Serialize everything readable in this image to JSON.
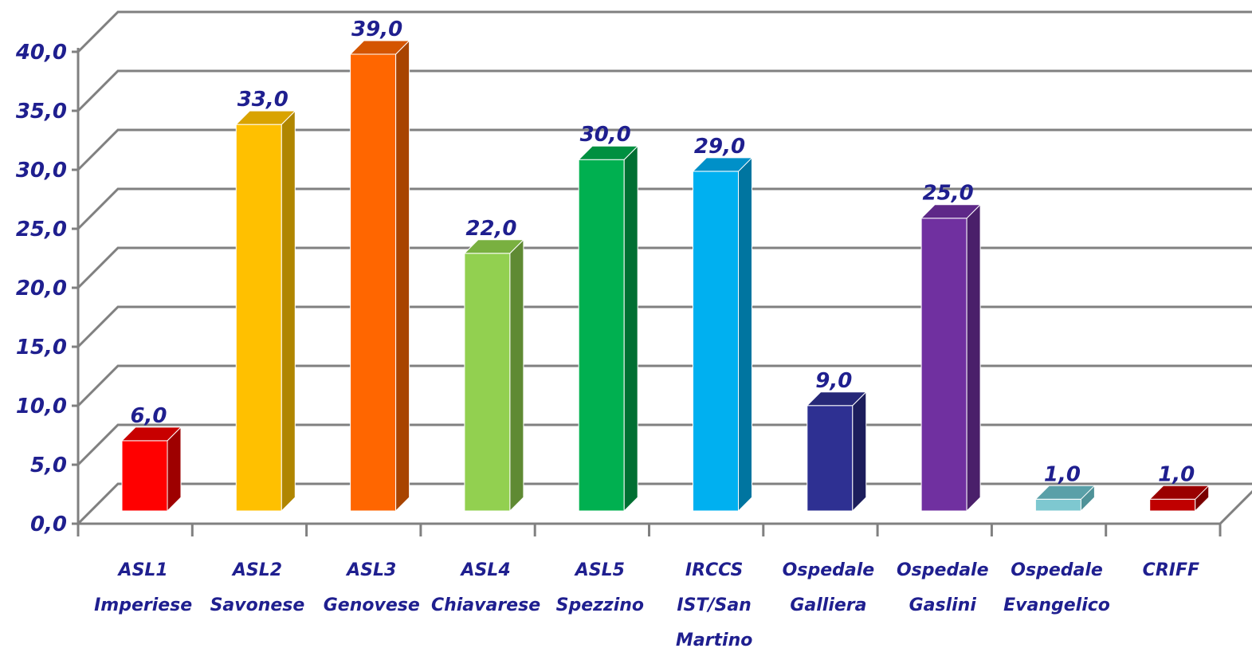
{
  "chart_data": {
    "type": "bar",
    "title": "",
    "xlabel": "",
    "ylabel": "",
    "ylim": [
      0,
      40
    ],
    "yticks": [
      "0,0",
      "5,0",
      "10,0",
      "15,0",
      "20,0",
      "25,0",
      "30,0",
      "35,0",
      "40,0"
    ],
    "grid": true,
    "style": "3d",
    "categories": [
      [
        "ASL1",
        "Imperiese"
      ],
      [
        "ASL2",
        "Savonese"
      ],
      [
        "ASL3",
        "Genovese"
      ],
      [
        "ASL4",
        "Chiavarese"
      ],
      [
        "ASL5",
        "Spezzino"
      ],
      [
        "IRCCS",
        "IST/San",
        "Martino"
      ],
      [
        "Ospedale",
        "Galliera"
      ],
      [
        "Ospedale",
        "Gaslini"
      ],
      [
        "Ospedale",
        "Evangelico"
      ],
      [
        "CRIFF"
      ]
    ],
    "values": [
      6,
      33,
      39,
      22,
      30,
      29,
      9,
      25,
      1,
      1
    ],
    "value_labels": [
      "6,0",
      "33,0",
      "39,0",
      "22,0",
      "30,0",
      "29,0",
      "9,0",
      "25,0",
      "1,0",
      "1,0"
    ],
    "colors": [
      {
        "front": "#ff0000",
        "side": "#9e0000",
        "top": "#c80000"
      },
      {
        "front": "#ffc000",
        "side": "#b08600",
        "top": "#d9a300"
      },
      {
        "front": "#ff6600",
        "side": "#a84400",
        "top": "#d45500"
      },
      {
        "front": "#92d050",
        "side": "#5f8a33",
        "top": "#79b040"
      },
      {
        "front": "#00b050",
        "side": "#006f32",
        "top": "#009040"
      },
      {
        "front": "#00b0f0",
        "side": "#0075a0",
        "top": "#0090c8"
      },
      {
        "front": "#2e3092",
        "side": "#1c1d5c",
        "top": "#262878"
      },
      {
        "front": "#7030a0",
        "side": "#4a1f6a",
        "top": "#5e2888"
      },
      {
        "front": "#7ec8d0",
        "side": "#4f9298",
        "top": "#5aa0a8"
      },
      {
        "front": "#c00000",
        "side": "#7a0000",
        "top": "#9a0000"
      }
    ],
    "text_color": "#1f1f8f",
    "grid_color": "#808080"
  }
}
